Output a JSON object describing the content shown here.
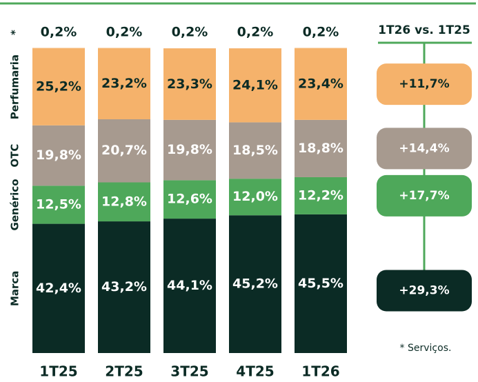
{
  "chart_data": {
    "type": "stacked_bar",
    "categories": [
      "1T25",
      "2T25",
      "3T25",
      "4T25",
      "1T26"
    ],
    "series": [
      {
        "name": "Marca",
        "color": "#0b2b25",
        "values": [
          42.4,
          43.2,
          44.1,
          45.2,
          45.5
        ],
        "value_labels": [
          "42,4%",
          "43,2%",
          "44,1%",
          "45,2%",
          "45,5%"
        ],
        "growth": 29.3,
        "growth_label": "+29,3%"
      },
      {
        "name": "Genérico",
        "color": "#4ea85a",
        "values": [
          12.5,
          12.8,
          12.6,
          12.0,
          12.2
        ],
        "value_labels": [
          "12,5%",
          "12,8%",
          "12,6%",
          "12,0%",
          "12,2%"
        ],
        "growth": 17.7,
        "growth_label": "+17,7%"
      },
      {
        "name": "OTC",
        "color": "#a79a8f",
        "values": [
          19.8,
          20.7,
          19.8,
          18.5,
          18.8
        ],
        "value_labels": [
          "19,8%",
          "20,7%",
          "19,8%",
          "18,5%",
          "18,8%"
        ],
        "growth": 14.4,
        "growth_label": "+14,4%"
      },
      {
        "name": "Perfumaria",
        "color": "#f5b26b",
        "values": [
          25.2,
          23.2,
          23.3,
          24.1,
          23.4
        ],
        "value_labels": [
          "25,2%",
          "23,2%",
          "23,3%",
          "24,1%",
          "23,4%"
        ],
        "growth": 11.7,
        "growth_label": "+11,7%"
      },
      {
        "name": "*",
        "color": "#f5b26b",
        "values": [
          0.2,
          0.2,
          0.2,
          0.2,
          0.2
        ],
        "value_labels": [
          "0,2%",
          "0,2%",
          "0,2%",
          "0,2%",
          "0,2%"
        ]
      }
    ],
    "ylim": [
      0,
      100
    ],
    "comparison_title": "1T26 vs. 1T25",
    "footnote": "* Serviços."
  }
}
